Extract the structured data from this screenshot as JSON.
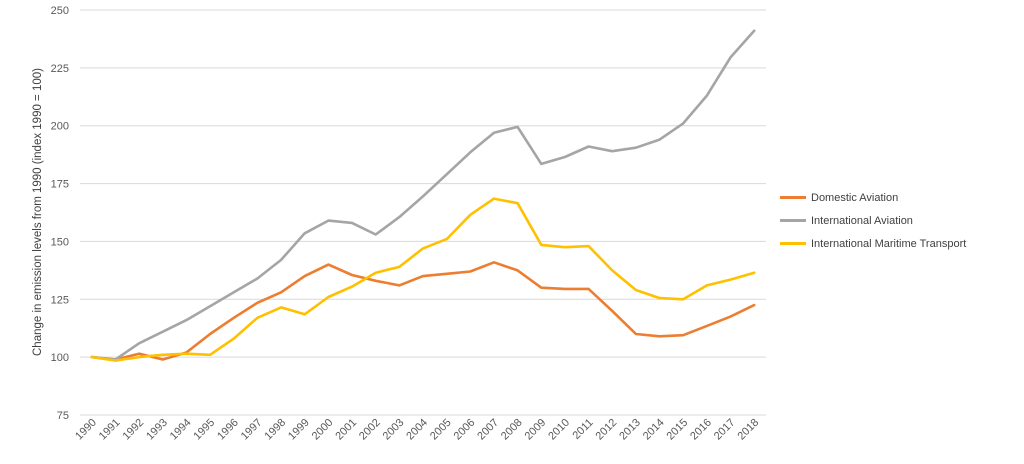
{
  "chart_data": {
    "type": "line",
    "xlabel": "",
    "ylabel": "Change in emission levels from 1990 (index 1990 = 100)",
    "ylim": [
      75,
      250
    ],
    "yticks": [
      75,
      100,
      125,
      150,
      175,
      200,
      225,
      250
    ],
    "grid": true,
    "legend_position": "right",
    "categories": [
      "1990",
      "1991",
      "1992",
      "1993",
      "1994",
      "1995",
      "1996",
      "1997",
      "1998",
      "1999",
      "2000",
      "2001",
      "2002",
      "2003",
      "2004",
      "2005",
      "2006",
      "2007",
      "2008",
      "2009",
      "2010",
      "2011",
      "2012",
      "2013",
      "2014",
      "2015",
      "2016",
      "2017",
      "2018"
    ],
    "series": [
      {
        "name": "Domestic Aviation",
        "color": "#ed7d31",
        "values": [
          100,
          99,
          101.5,
          99,
          102,
          110,
          117,
          123.5,
          128,
          135,
          140,
          135.5,
          133,
          131,
          135,
          136,
          137,
          141,
          137.5,
          130,
          129.5,
          129.5,
          120,
          110,
          109,
          109.5,
          113.5,
          117.5,
          122.5
        ]
      },
      {
        "name": "International Aviation",
        "color": "#a5a5a5",
        "values": [
          100,
          99,
          106,
          111,
          116,
          122,
          128,
          134,
          142,
          153.5,
          159,
          158,
          153,
          160.5,
          169.5,
          179,
          188.5,
          197,
          199.5,
          183.5,
          186.5,
          191,
          189,
          190.5,
          194,
          201,
          213,
          229.5,
          241
        ]
      },
      {
        "name": "International Maritime Transport",
        "color": "#ffc000",
        "values": [
          100,
          98.5,
          100,
          101,
          101.5,
          101,
          108,
          117,
          121.5,
          118.5,
          126,
          130.5,
          136.5,
          139,
          147,
          151,
          161.5,
          168.5,
          166.5,
          148.5,
          147.5,
          148,
          137.5,
          129,
          125.5,
          125,
          131,
          133.5,
          136.5
        ]
      }
    ]
  }
}
